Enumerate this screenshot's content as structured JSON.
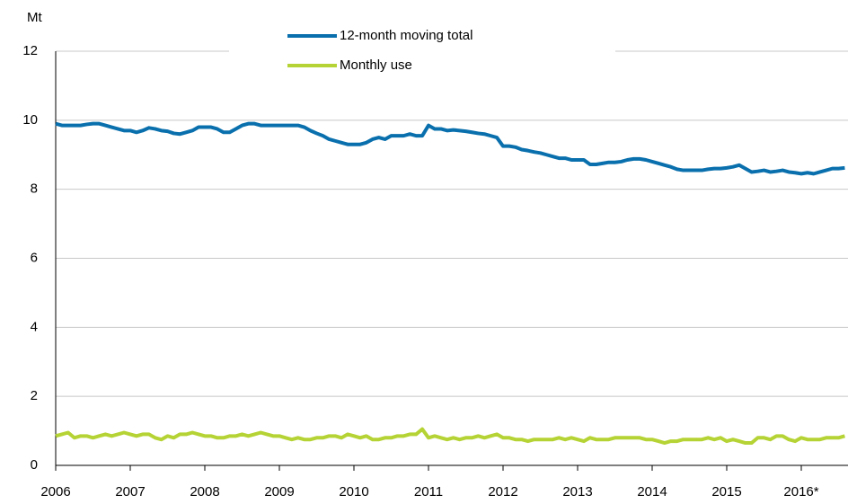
{
  "chart_data": {
    "type": "line",
    "y_label": "Mt",
    "categories": [
      "2006",
      null,
      null,
      null,
      null,
      null,
      null,
      null,
      null,
      null,
      null,
      null,
      "2007",
      null,
      null,
      null,
      null,
      null,
      null,
      null,
      null,
      null,
      null,
      null,
      "2008",
      null,
      null,
      null,
      null,
      null,
      null,
      null,
      null,
      null,
      null,
      null,
      "2009",
      null,
      null,
      null,
      null,
      null,
      null,
      null,
      null,
      null,
      null,
      null,
      "2010",
      null,
      null,
      null,
      null,
      null,
      null,
      null,
      null,
      null,
      null,
      null,
      "2011",
      null,
      null,
      null,
      null,
      null,
      null,
      null,
      null,
      null,
      null,
      null,
      "2012",
      null,
      null,
      null,
      null,
      null,
      null,
      null,
      null,
      null,
      null,
      null,
      "2013",
      null,
      null,
      null,
      null,
      null,
      null,
      null,
      null,
      null,
      null,
      null,
      "2014",
      null,
      null,
      null,
      null,
      null,
      null,
      null,
      null,
      null,
      null,
      null,
      "2015",
      null,
      null,
      null,
      null,
      null,
      null,
      null,
      null,
      null,
      null,
      null,
      "2016*",
      null,
      null,
      null,
      null,
      null,
      null,
      null
    ],
    "series": [
      {
        "name": "12-month moving total",
        "color": "#0a70ad",
        "values": [
          9.9,
          9.85,
          9.85,
          9.85,
          9.85,
          9.88,
          9.9,
          9.9,
          9.85,
          9.8,
          9.75,
          9.7,
          9.7,
          9.65,
          9.7,
          9.78,
          9.75,
          9.7,
          9.68,
          9.62,
          9.6,
          9.65,
          9.7,
          9.8,
          9.8,
          9.8,
          9.75,
          9.65,
          9.65,
          9.75,
          9.85,
          9.9,
          9.9,
          9.85,
          9.85,
          9.85,
          9.85,
          9.85,
          9.85,
          9.85,
          9.8,
          9.7,
          9.62,
          9.55,
          9.45,
          9.4,
          9.35,
          9.3,
          9.3,
          9.3,
          9.35,
          9.45,
          9.5,
          9.45,
          9.55,
          9.55,
          9.55,
          9.6,
          9.55,
          9.55,
          9.85,
          9.75,
          9.75,
          9.7,
          9.72,
          9.7,
          9.68,
          9.65,
          9.62,
          9.6,
          9.55,
          9.5,
          9.25,
          9.25,
          9.22,
          9.15,
          9.12,
          9.08,
          9.05,
          9.0,
          8.95,
          8.9,
          8.9,
          8.85,
          8.85,
          8.85,
          8.72,
          8.72,
          8.75,
          8.78,
          8.78,
          8.8,
          8.85,
          8.88,
          8.88,
          8.85,
          8.8,
          8.75,
          8.7,
          8.65,
          8.58,
          8.55,
          8.55,
          8.55,
          8.55,
          8.58,
          8.6,
          8.6,
          8.62,
          8.65,
          8.7,
          8.6,
          8.5,
          8.52,
          8.55,
          8.5,
          8.52,
          8.55,
          8.5,
          8.48,
          8.45,
          8.48,
          8.45,
          8.5,
          8.55,
          8.6,
          8.6,
          8.62
        ]
      },
      {
        "name": "Monthly use",
        "color": "#b5d334",
        "values": [
          0.85,
          0.9,
          0.95,
          0.8,
          0.85,
          0.85,
          0.8,
          0.85,
          0.9,
          0.85,
          0.9,
          0.95,
          0.9,
          0.85,
          0.9,
          0.9,
          0.8,
          0.75,
          0.85,
          0.8,
          0.9,
          0.9,
          0.95,
          0.9,
          0.85,
          0.85,
          0.8,
          0.8,
          0.85,
          0.85,
          0.9,
          0.85,
          0.9,
          0.95,
          0.9,
          0.85,
          0.85,
          0.8,
          0.75,
          0.8,
          0.75,
          0.75,
          0.8,
          0.8,
          0.85,
          0.85,
          0.8,
          0.9,
          0.85,
          0.8,
          0.85,
          0.75,
          0.75,
          0.8,
          0.8,
          0.85,
          0.85,
          0.9,
          0.9,
          1.05,
          0.8,
          0.85,
          0.8,
          0.75,
          0.8,
          0.75,
          0.8,
          0.8,
          0.85,
          0.8,
          0.85,
          0.9,
          0.8,
          0.8,
          0.75,
          0.75,
          0.7,
          0.75,
          0.75,
          0.75,
          0.75,
          0.8,
          0.75,
          0.8,
          0.75,
          0.7,
          0.8,
          0.75,
          0.75,
          0.75,
          0.8,
          0.8,
          0.8,
          0.8,
          0.8,
          0.75,
          0.75,
          0.7,
          0.65,
          0.7,
          0.7,
          0.75,
          0.75,
          0.75,
          0.75,
          0.8,
          0.75,
          0.8,
          0.7,
          0.75,
          0.7,
          0.65,
          0.65,
          0.8,
          0.8,
          0.75,
          0.85,
          0.85,
          0.75,
          0.7,
          0.8,
          0.75,
          0.75,
          0.75,
          0.8,
          0.8,
          0.8,
          0.85
        ]
      }
    ],
    "ylim": [
      0,
      12
    ],
    "yticks": [
      0,
      2,
      4,
      6,
      8,
      10,
      12
    ],
    "grid": true
  }
}
